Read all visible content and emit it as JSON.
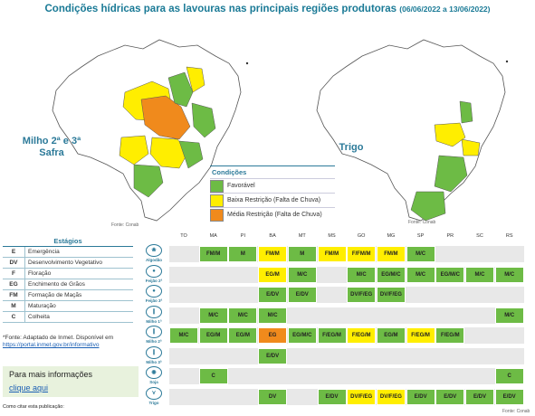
{
  "title": "Condições hídricas para as lavouras nas principais regiões produtoras",
  "date_range": "(06/06/2022 a 13/06/2022)",
  "map_left_label_1": "Milho 2ª e 3ª",
  "map_left_label_2": "Safra",
  "map_right_label": "Trigo",
  "fonte_conab": "Fonte: Conab",
  "legend": {
    "title": "Condições",
    "items": [
      {
        "label": "Favorável",
        "color": "#6dbb45"
      },
      {
        "label": "Baixa Restrição (Falta de Chuva)",
        "color": "#ffee00"
      },
      {
        "label": "Média Restrição (Falta de Chuva)",
        "color": "#f08a1c"
      }
    ]
  },
  "estagios": {
    "title": "Estágios",
    "rows": [
      {
        "code": "E",
        "label": "Emergência"
      },
      {
        "code": "DV",
        "label": "Desenvolvimento Vegetativo"
      },
      {
        "code": "F",
        "label": "Floração"
      },
      {
        "code": "EG",
        "label": "Enchimento de Grãos"
      },
      {
        "code": "FM",
        "label": "Formação de Maçãs"
      },
      {
        "code": "M",
        "label": "Maturação"
      },
      {
        "code": "C",
        "label": "Colheita"
      }
    ]
  },
  "fonte_inmet": "*Fonte: Adaptado de Inmet. Disponível em",
  "fonte_inmet_link": "https://portal.inmet.gov.br/informativo",
  "info_title": "Para mais informações",
  "info_link": "clique aqui",
  "cite": "Como citar esta publicação:",
  "states": [
    "TO",
    "MA",
    "PI",
    "BA",
    "MT",
    "MS",
    "GO",
    "MG",
    "SP",
    "PR",
    "SC",
    "RS"
  ],
  "colors": {
    "G": "#6dbb45",
    "Y": "#ffee00",
    "O": "#f08a1c"
  },
  "crops": [
    {
      "name": "Algodão",
      "icon": "cotton-icon",
      "cells": [
        [
          1,
          "FM/M",
          "G"
        ],
        [
          2,
          "M",
          "G"
        ],
        [
          3,
          "FM/M",
          "Y"
        ],
        [
          4,
          "M",
          "G"
        ],
        [
          5,
          "FM/M",
          "Y"
        ],
        [
          6,
          "F/FM/M",
          "Y"
        ],
        [
          7,
          "FM/M",
          "Y"
        ],
        [
          8,
          "M/C",
          "G"
        ]
      ]
    },
    {
      "name": "Feijão 2ª",
      "icon": "bean-icon",
      "cells": [
        [
          3,
          "EG/M",
          "Y"
        ],
        [
          4,
          "M/C",
          "G"
        ],
        [
          6,
          "M/C",
          "G"
        ],
        [
          7,
          "EG/M/C",
          "G"
        ],
        [
          8,
          "M/C",
          "G"
        ],
        [
          9,
          "EG/M/C",
          "G"
        ],
        [
          10,
          "M/C",
          "G"
        ],
        [
          11,
          "M/C",
          "G"
        ]
      ]
    },
    {
      "name": "Feijão 3ª",
      "icon": "bean-icon",
      "cells": [
        [
          3,
          "E/DV",
          "G"
        ],
        [
          4,
          "E/DV",
          "G"
        ],
        [
          6,
          "DV/F/EG",
          "G"
        ],
        [
          7,
          "DV/F/EG",
          "G"
        ]
      ]
    },
    {
      "name": "Milho 1ª",
      "icon": "corn-icon",
      "cells": [
        [
          1,
          "M/C",
          "G"
        ],
        [
          2,
          "M/C",
          "G"
        ],
        [
          3,
          "M/C",
          "G"
        ],
        [
          11,
          "M/C",
          "G"
        ]
      ]
    },
    {
      "name": "Milho 2ª",
      "icon": "corn-icon",
      "cells": [
        [
          0,
          "M/C",
          "G"
        ],
        [
          1,
          "EG/M",
          "G"
        ],
        [
          2,
          "EG/M",
          "G"
        ],
        [
          3,
          "EG",
          "O"
        ],
        [
          4,
          "EG/M/C",
          "G"
        ],
        [
          5,
          "F/EG/M",
          "G"
        ],
        [
          6,
          "F/EG/M",
          "Y"
        ],
        [
          7,
          "EG/M",
          "G"
        ],
        [
          8,
          "F/EG/M",
          "Y"
        ],
        [
          9,
          "F/EG/M",
          "G"
        ]
      ]
    },
    {
      "name": "Milho 3ª",
      "icon": "corn-icon",
      "cells": [
        [
          3,
          "E/DV",
          "G"
        ]
      ]
    },
    {
      "name": "Soja",
      "icon": "soy-icon",
      "cells": [
        [
          1,
          "C",
          "G"
        ],
        [
          11,
          "C",
          "G"
        ]
      ]
    },
    {
      "name": "Trigo",
      "icon": "wheat-icon",
      "cells": [
        [
          3,
          "DV",
          "G"
        ],
        [
          5,
          "E/DV",
          "G"
        ],
        [
          6,
          "DV/F/EG",
          "Y"
        ],
        [
          7,
          "DV/F/EG",
          "Y"
        ],
        [
          8,
          "E/DV",
          "G"
        ],
        [
          9,
          "E/DV",
          "G"
        ],
        [
          10,
          "E/DV",
          "G"
        ],
        [
          11,
          "E/DV",
          "G"
        ]
      ]
    }
  ]
}
